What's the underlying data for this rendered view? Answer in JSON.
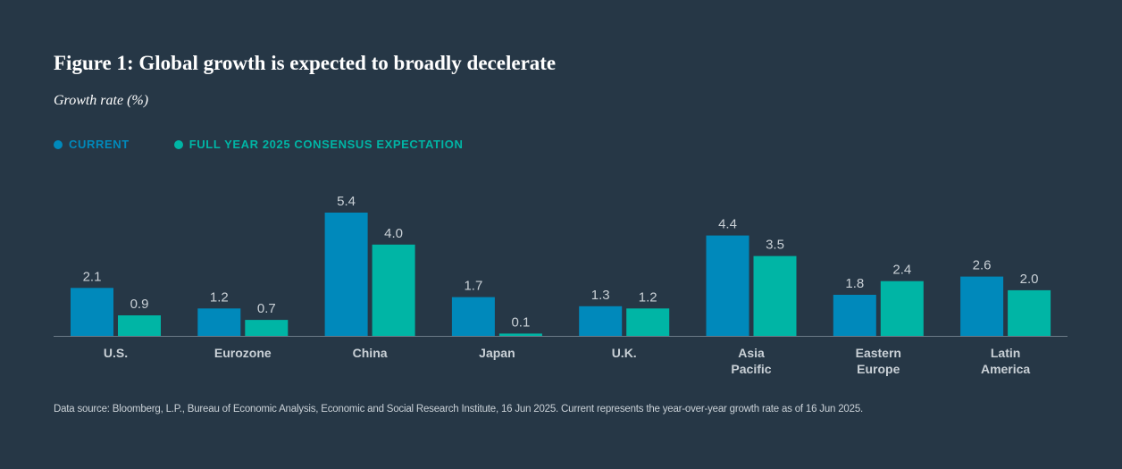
{
  "colors": {
    "background": "#263746",
    "current": "#0089bb",
    "consensus": "#00b5a5",
    "axis": "#6b7a87",
    "value_label": "#c9d0d6",
    "category_label": "#c9d0d6"
  },
  "chart_data": {
    "type": "bar",
    "title": "Figure 1: Global growth is expected to broadly decelerate",
    "ylabel": "Growth rate (%)",
    "xlabel": "",
    "ylim": [
      0,
      5.4
    ],
    "grid": false,
    "legend_position": "top-left",
    "categories": [
      [
        "U.S."
      ],
      [
        "Eurozone"
      ],
      [
        "China"
      ],
      [
        "Japan"
      ],
      [
        "U.K."
      ],
      [
        "Asia",
        "Pacific"
      ],
      [
        "Eastern",
        "Europe"
      ],
      [
        "Latin",
        "America"
      ]
    ],
    "series": [
      {
        "name": "CURRENT",
        "color": "#0089bb",
        "values": [
          2.1,
          1.2,
          5.4,
          1.7,
          1.3,
          4.4,
          1.8,
          2.6
        ],
        "labels": [
          "2.1",
          "1.2",
          "5.4",
          "1.7",
          "1.3",
          "4.4",
          "1.8",
          "2.6"
        ]
      },
      {
        "name": "FULL YEAR 2025 CONSENSUS EXPECTATION",
        "color": "#00b5a5",
        "values": [
          0.9,
          0.7,
          4.0,
          0.1,
          1.2,
          3.5,
          2.4,
          2.0
        ],
        "labels": [
          "0.9",
          "0.7",
          "4.0",
          "0.1",
          "1.2",
          "3.5",
          "2.4",
          "2.0"
        ]
      }
    ],
    "source": "Data source: Bloomberg, L.P., Bureau of Economic Analysis, Economic and Social Research Institute, 16 Jun 2025. Current represents the year-over-year growth rate as of 16 Jun 2025."
  }
}
